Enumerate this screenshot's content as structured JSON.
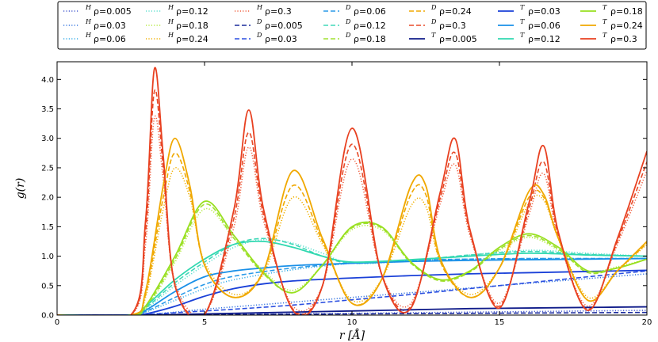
{
  "chart_data": {
    "type": "line",
    "xlabel": "r [Å]",
    "ylabel": "g(r)",
    "xlim": [
      0,
      20
    ],
    "ylim": [
      0,
      4.3
    ],
    "xticks": [
      "0",
      "5",
      "10",
      "15",
      "20"
    ],
    "yticks": [
      "0.0",
      "0.5",
      "1.0",
      "1.5",
      "2.0",
      "2.5",
      "3.0",
      "3.5",
      "4.0"
    ],
    "grid": false,
    "legend_placement": "top (above plot), 7 columns",
    "series": [
      {
        "name": "H ρ=0.005",
        "model": "H",
        "rho": 0.005,
        "style": "dotted",
        "color": "#4a5fd0",
        "x": [
          0,
          2.5,
          3,
          4,
          5,
          6,
          8,
          10,
          12,
          14,
          16,
          18,
          20
        ],
        "y": [
          0,
          0,
          0.002,
          0.005,
          0.007,
          0.008,
          0.02,
          0.03,
          0.04,
          0.05,
          0.06,
          0.07,
          0.08
        ]
      },
      {
        "name": "H ρ=0.03",
        "model": "H",
        "rho": 0.03,
        "style": "dotted",
        "color": "#3a78e0",
        "x": [
          0,
          2.5,
          3,
          4,
          5,
          6,
          8,
          10,
          12,
          14,
          16,
          18,
          20
        ],
        "y": [
          0,
          0,
          0.01,
          0.05,
          0.1,
          0.14,
          0.22,
          0.3,
          0.38,
          0.46,
          0.54,
          0.62,
          0.7
        ]
      },
      {
        "name": "H ρ=0.06",
        "model": "H",
        "rho": 0.06,
        "style": "dotted",
        "color": "#3aaee8",
        "x": [
          0,
          2.5,
          3,
          4,
          5,
          6,
          8,
          10,
          12,
          14,
          16,
          18,
          20
        ],
        "y": [
          0,
          0,
          0.05,
          0.25,
          0.45,
          0.6,
          0.77,
          0.88,
          0.93,
          0.95,
          0.96,
          0.96,
          0.96
        ]
      },
      {
        "name": "H ρ=0.12",
        "model": "H",
        "rho": 0.12,
        "style": "dotted",
        "color": "#60e0d0",
        "x": [
          0,
          2.5,
          3,
          4,
          5,
          6,
          7,
          8,
          9,
          10,
          12,
          14,
          16,
          18,
          20
        ],
        "y": [
          0,
          0,
          0.1,
          0.5,
          0.85,
          1.15,
          1.28,
          1.22,
          1.05,
          0.88,
          0.92,
          1.02,
          1.1,
          1.05,
          1.0
        ]
      },
      {
        "name": "H ρ=0.18",
        "model": "H",
        "rho": 0.18,
        "style": "dotted",
        "color": "#b5ea40",
        "x": [
          0,
          2.5,
          3,
          4,
          5,
          6,
          7,
          8,
          9,
          10,
          11,
          12,
          13,
          14,
          15,
          16,
          17,
          18,
          19,
          20
        ],
        "y": [
          0,
          0,
          0.1,
          0.9,
          1.8,
          1.3,
          0.75,
          0.42,
          0.85,
          1.45,
          1.45,
          0.9,
          0.6,
          0.75,
          1.1,
          1.32,
          1.1,
          0.75,
          0.82,
          0.95
        ]
      },
      {
        "name": "H ρ=0.24",
        "model": "H",
        "rho": 0.24,
        "style": "dotted",
        "color": "#f0b000",
        "x": [
          0,
          2.5,
          3,
          3.6,
          4,
          4.5,
          5,
          6,
          7,
          8,
          9,
          10,
          11,
          12,
          12.5,
          13,
          14,
          15,
          16,
          16.5,
          17,
          18,
          19,
          20
        ],
        "y": [
          0,
          0,
          0.3,
          1.8,
          2.5,
          2.0,
          0.9,
          0.35,
          0.7,
          2.0,
          1.2,
          0.25,
          0.6,
          1.85,
          1.85,
          0.9,
          0.35,
          0.8,
          1.9,
          1.95,
          1.3,
          0.3,
          0.75,
          1.2
        ]
      },
      {
        "name": "H ρ=0.3",
        "model": "H",
        "rho": 0.3,
        "style": "dotted",
        "color": "#f06040",
        "x": [
          0,
          2.5,
          3,
          3.3,
          3.6,
          4,
          5,
          6,
          6.5,
          7,
          8,
          9,
          10,
          11,
          12,
          13,
          13.5,
          14,
          15,
          16,
          16.5,
          17,
          18,
          19,
          20
        ],
        "y": [
          0,
          0,
          1.2,
          3.35,
          2.3,
          0.55,
          0.02,
          1.5,
          2.85,
          1.6,
          0.15,
          0.5,
          2.65,
          0.7,
          0.2,
          1.9,
          2.55,
          1.35,
          0.2,
          1.7,
          2.4,
          1.3,
          0.15,
          1.2,
          2.45
        ]
      },
      {
        "name": "D ρ=0.005",
        "model": "D",
        "rho": 0.005,
        "style": "dashed",
        "color": "#1a2a9c",
        "x": [
          0,
          2.5,
          3,
          4,
          6,
          8,
          10,
          12,
          14,
          16,
          18,
          20
        ],
        "y": [
          0,
          0,
          0.001,
          0.004,
          0.01,
          0.015,
          0.02,
          0.025,
          0.03,
          0.035,
          0.04,
          0.045
        ]
      },
      {
        "name": "D ρ=0.03",
        "model": "D",
        "rho": 0.03,
        "style": "dashed",
        "color": "#2a4ee0",
        "x": [
          0,
          2.5,
          3,
          4,
          5,
          6,
          8,
          10,
          12,
          14,
          16,
          18,
          20
        ],
        "y": [
          0,
          0,
          0.01,
          0.04,
          0.07,
          0.1,
          0.17,
          0.26,
          0.35,
          0.45,
          0.55,
          0.65,
          0.75
        ]
      },
      {
        "name": "D ρ=0.06",
        "model": "D",
        "rho": 0.06,
        "style": "dashed",
        "color": "#2a9ae8",
        "x": [
          0,
          2.5,
          3,
          4,
          5,
          6,
          8,
          10,
          12,
          14,
          16,
          18,
          20
        ],
        "y": [
          0,
          0,
          0.06,
          0.3,
          0.52,
          0.66,
          0.8,
          0.88,
          0.93,
          0.95,
          0.96,
          0.96,
          0.96
        ]
      },
      {
        "name": "D ρ=0.12",
        "model": "D",
        "rho": 0.12,
        "style": "dashed",
        "color": "#40d8b8",
        "x": [
          0,
          2.5,
          3,
          4,
          5,
          6,
          7,
          8,
          9,
          10,
          12,
          14,
          16,
          18,
          20
        ],
        "y": [
          0,
          0,
          0.12,
          0.55,
          0.9,
          1.2,
          1.3,
          1.2,
          1.0,
          0.88,
          0.93,
          1.02,
          1.08,
          1.03,
          1.0
        ]
      },
      {
        "name": "D ρ=0.18",
        "model": "D",
        "rho": 0.18,
        "style": "dashed",
        "color": "#a0e030",
        "x": [
          0,
          2.5,
          3,
          4,
          5,
          6,
          7,
          8,
          9,
          10,
          11,
          12,
          13,
          14,
          15,
          16,
          17,
          18,
          19,
          20
        ],
        "y": [
          0,
          0,
          0.12,
          0.95,
          1.88,
          1.3,
          0.7,
          0.38,
          0.85,
          1.48,
          1.48,
          0.88,
          0.58,
          0.73,
          1.12,
          1.35,
          1.12,
          0.72,
          0.8,
          0.95
        ]
      },
      {
        "name": "D ρ=0.24",
        "model": "D",
        "rho": 0.24,
        "style": "dashed",
        "color": "#f0a800",
        "x": [
          0,
          2.5,
          3,
          3.6,
          4,
          4.5,
          5,
          6,
          7,
          8,
          9,
          10,
          11,
          12,
          12.5,
          13,
          14,
          15,
          16,
          16.5,
          17,
          18,
          19,
          20
        ],
        "y": [
          0,
          0,
          0.35,
          2.0,
          2.75,
          2.1,
          0.85,
          0.3,
          0.75,
          2.2,
          1.25,
          0.2,
          0.6,
          2.05,
          2.05,
          0.9,
          0.3,
          0.8,
          2.0,
          2.0,
          1.3,
          0.25,
          0.75,
          1.22
        ]
      },
      {
        "name": "D ρ=0.3",
        "model": "D",
        "rho": 0.3,
        "style": "dashed",
        "color": "#e84a28",
        "x": [
          0,
          2.5,
          3,
          3.3,
          3.6,
          4,
          5,
          6,
          6.5,
          7,
          8,
          9,
          10,
          11,
          12,
          13,
          13.5,
          14,
          15,
          16,
          16.5,
          17,
          18,
          19,
          20
        ],
        "y": [
          0,
          0,
          1.4,
          3.8,
          2.5,
          0.5,
          0.01,
          1.65,
          3.1,
          1.7,
          0.1,
          0.5,
          2.9,
          0.7,
          0.15,
          2.0,
          2.75,
          1.4,
          0.15,
          1.8,
          2.6,
          1.35,
          0.1,
          1.25,
          2.6
        ]
      },
      {
        "name": "T ρ=0.005",
        "model": "T",
        "rho": 0.005,
        "style": "solid",
        "color": "#101c8a",
        "x": [
          0,
          2.5,
          3,
          4,
          6,
          8,
          10,
          12,
          14,
          16,
          18,
          20
        ],
        "y": [
          0,
          0,
          0.002,
          0.01,
          0.03,
          0.05,
          0.07,
          0.09,
          0.11,
          0.12,
          0.13,
          0.14
        ]
      },
      {
        "name": "T ρ=0.03",
        "model": "T",
        "rho": 0.03,
        "style": "solid",
        "color": "#1a40d8",
        "x": [
          0,
          2.5,
          3,
          4,
          5,
          6,
          7,
          8,
          10,
          12,
          14,
          16,
          18,
          20
        ],
        "y": [
          0,
          0,
          0.02,
          0.15,
          0.32,
          0.45,
          0.53,
          0.58,
          0.63,
          0.67,
          0.7,
          0.72,
          0.74,
          0.76
        ]
      },
      {
        "name": "T ρ=0.06",
        "model": "T",
        "rho": 0.06,
        "style": "solid",
        "color": "#1a90e8",
        "x": [
          0,
          2.5,
          3,
          4,
          5,
          6,
          7,
          8,
          10,
          12,
          14,
          16,
          18,
          20
        ],
        "y": [
          0,
          0,
          0.08,
          0.4,
          0.65,
          0.75,
          0.8,
          0.84,
          0.88,
          0.91,
          0.93,
          0.94,
          0.95,
          0.96
        ]
      },
      {
        "name": "T ρ=0.12",
        "model": "T",
        "rho": 0.12,
        "style": "solid",
        "color": "#30d8b0",
        "x": [
          0,
          2.5,
          3,
          4,
          5,
          6,
          7,
          8,
          9,
          10,
          12,
          14,
          16,
          18,
          20
        ],
        "y": [
          0,
          0,
          0.15,
          0.6,
          0.95,
          1.2,
          1.25,
          1.15,
          1.0,
          0.9,
          0.94,
          1.0,
          1.05,
          1.02,
          1.0
        ]
      },
      {
        "name": "T ρ=0.18",
        "model": "T",
        "rho": 0.18,
        "style": "solid",
        "color": "#98e020",
        "x": [
          0,
          2.5,
          3,
          4,
          5,
          6,
          7,
          8,
          9,
          10,
          11,
          12,
          13,
          14,
          15,
          16,
          17,
          18,
          19,
          20
        ],
        "y": [
          0,
          0,
          0.15,
          1.0,
          1.93,
          1.35,
          0.72,
          0.38,
          0.85,
          1.5,
          1.5,
          0.9,
          0.6,
          0.75,
          1.15,
          1.38,
          1.15,
          0.75,
          0.8,
          0.95
        ]
      },
      {
        "name": "T ρ=0.24",
        "model": "T",
        "rho": 0.24,
        "style": "solid",
        "color": "#f0a800",
        "x": [
          0,
          2.5,
          3,
          3.6,
          4,
          4.5,
          5,
          6,
          7,
          8,
          9,
          10,
          11,
          12,
          12.5,
          13,
          14,
          15,
          16,
          16.5,
          17,
          18,
          19,
          20
        ],
        "y": [
          0,
          0,
          0.4,
          2.2,
          3.0,
          2.2,
          0.85,
          0.3,
          0.75,
          2.45,
          1.3,
          0.2,
          0.6,
          2.2,
          2.2,
          0.95,
          0.3,
          0.8,
          2.1,
          2.05,
          1.3,
          0.25,
          0.75,
          1.25
        ]
      },
      {
        "name": "T ρ=0.3",
        "model": "T",
        "rho": 0.3,
        "style": "solid",
        "color": "#e84020",
        "x": [
          0,
          2.5,
          3,
          3.3,
          3.6,
          4,
          5,
          6,
          6.5,
          7,
          8,
          9,
          10,
          11,
          12,
          13,
          13.5,
          14,
          15,
          16,
          16.5,
          17,
          18,
          19,
          20
        ],
        "y": [
          0,
          0,
          1.6,
          4.18,
          2.7,
          0.5,
          0.01,
          1.8,
          3.48,
          1.8,
          0.08,
          0.5,
          3.17,
          0.7,
          0.12,
          2.1,
          2.99,
          1.45,
          0.12,
          1.9,
          2.87,
          1.4,
          0.08,
          1.3,
          2.78
        ]
      }
    ]
  }
}
